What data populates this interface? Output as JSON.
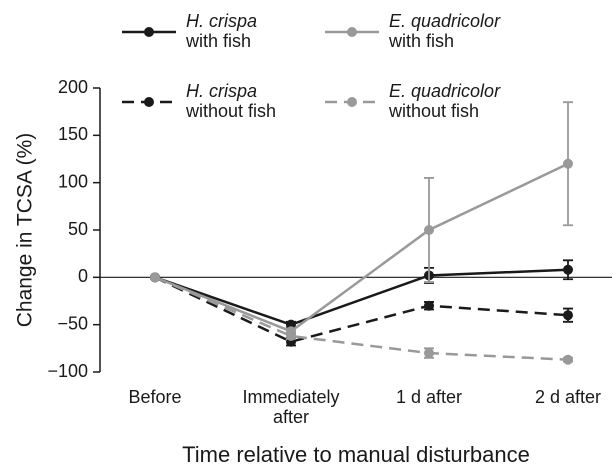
{
  "chart_data": {
    "type": "line",
    "categories": [
      "Before",
      "Immediately after",
      "1 d after",
      "2 d after"
    ],
    "xlabel": "Time relative to manual disturbance",
    "ylabel": "Change in TCSA (%)",
    "ylim": [
      -100,
      200
    ],
    "yticks": [
      {
        "value": -100,
        "label": "−100"
      },
      {
        "value": -50,
        "label": "−50"
      },
      0,
      50,
      100,
      150,
      200
    ],
    "zero_line": true,
    "legend": "top",
    "series": [
      {
        "name": "H. crispa with fish",
        "color": "#1a1a1a",
        "dashed": false,
        "values": [
          0,
          -50,
          2,
          8
        ],
        "errors": [
          0,
          3,
          8,
          10
        ]
      },
      {
        "name": "E. quadricolor with fish",
        "color": "#999999",
        "dashed": false,
        "values": [
          0,
          -57,
          50,
          120
        ],
        "errors": [
          0,
          3,
          55,
          65
        ]
      },
      {
        "name": "H. crispa without fish",
        "color": "#1a1a1a",
        "dashed": true,
        "values": [
          0,
          -68,
          -30,
          -40
        ],
        "errors": [
          0,
          4,
          4,
          7
        ]
      },
      {
        "name": "E. quadricolor without fish",
        "color": "#999999",
        "dashed": true,
        "values": [
          0,
          -62,
          -80,
          -87
        ],
        "errors": [
          0,
          3,
          5,
          2
        ]
      }
    ]
  }
}
